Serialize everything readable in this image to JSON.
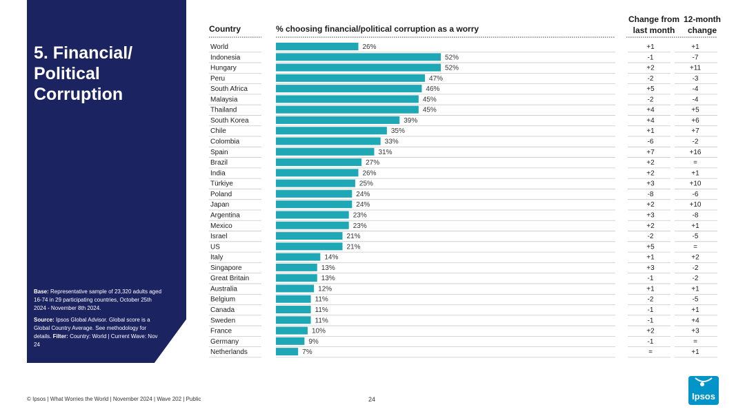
{
  "slide": {
    "title": "5. Financial/ Political Corruption",
    "base_label": "Base:",
    "base_text": "Representative sample of 23,320 adults aged 16-74 in 29 participating countries, October 25th 2024 - November 8th 2024.",
    "source_label": "Source:",
    "source_text": "Ipsos Global Advisor. Global score is a Global Country Average. See methodology for details.",
    "filter_label": "Filter:",
    "filter_text": "Country: World | Current Wave: Nov 24",
    "footer": "© Ipsos | What Worries the World | November 2024 | Wave 202 | Public",
    "page_number": "24",
    "logo_text": "Ipsos"
  },
  "colors": {
    "panel": "#1b2361",
    "bar": "#1ea7b4",
    "logo": "#0094c9"
  },
  "chart_data": {
    "type": "bar",
    "orientation": "horizontal",
    "headers": {
      "country": "Country",
      "measure": "% choosing financial/political corruption as a worry",
      "change_month_line1": "Change from",
      "change_month_line2": "last month",
      "change_year_line1": "12-month",
      "change_year_line2": "change"
    },
    "xlim": [
      0,
      100
    ],
    "value_suffix": "%",
    "rows": [
      {
        "country": "World",
        "value": 26,
        "change_month": "+1",
        "change_year": "+1"
      },
      {
        "country": "Indonesia",
        "value": 52,
        "change_month": "-1",
        "change_year": "-7"
      },
      {
        "country": "Hungary",
        "value": 52,
        "change_month": "+2",
        "change_year": "+11"
      },
      {
        "country": "Peru",
        "value": 47,
        "change_month": "-2",
        "change_year": "-3"
      },
      {
        "country": "South Africa",
        "value": 46,
        "change_month": "+5",
        "change_year": "-4"
      },
      {
        "country": "Malaysia",
        "value": 45,
        "change_month": "-2",
        "change_year": "-4"
      },
      {
        "country": "Thailand",
        "value": 45,
        "change_month": "+4",
        "change_year": "+5"
      },
      {
        "country": "South Korea",
        "value": 39,
        "change_month": "+4",
        "change_year": "+6"
      },
      {
        "country": "Chile",
        "value": 35,
        "change_month": "+1",
        "change_year": "+7"
      },
      {
        "country": "Colombia",
        "value": 33,
        "change_month": "-6",
        "change_year": "-2"
      },
      {
        "country": "Spain",
        "value": 31,
        "change_month": "+7",
        "change_year": "+16"
      },
      {
        "country": "Brazil",
        "value": 27,
        "change_month": "+2",
        "change_year": "="
      },
      {
        "country": "India",
        "value": 26,
        "change_month": "+2",
        "change_year": "+1"
      },
      {
        "country": "Türkiye",
        "value": 25,
        "change_month": "+3",
        "change_year": "+10"
      },
      {
        "country": "Poland",
        "value": 24,
        "change_month": "-8",
        "change_year": "-6"
      },
      {
        "country": "Japan",
        "value": 24,
        "change_month": "+2",
        "change_year": "+10"
      },
      {
        "country": "Argentina",
        "value": 23,
        "change_month": "+3",
        "change_year": "-8"
      },
      {
        "country": "Mexico",
        "value": 23,
        "change_month": "+2",
        "change_year": "+1"
      },
      {
        "country": "Israel",
        "value": 21,
        "change_month": "-2",
        "change_year": "-5"
      },
      {
        "country": "US",
        "value": 21,
        "change_month": "+5",
        "change_year": "="
      },
      {
        "country": "Italy",
        "value": 14,
        "change_month": "+1",
        "change_year": "+2"
      },
      {
        "country": "Singapore",
        "value": 13,
        "change_month": "+3",
        "change_year": "-2"
      },
      {
        "country": "Great Britain",
        "value": 13,
        "change_month": "-1",
        "change_year": "-2"
      },
      {
        "country": "Australia",
        "value": 12,
        "change_month": "+1",
        "change_year": "+1"
      },
      {
        "country": "Belgium",
        "value": 11,
        "change_month": "-2",
        "change_year": "-5"
      },
      {
        "country": "Canada",
        "value": 11,
        "change_month": "-1",
        "change_year": "+1"
      },
      {
        "country": "Sweden",
        "value": 11,
        "change_month": "-1",
        "change_year": "+4"
      },
      {
        "country": "France",
        "value": 10,
        "change_month": "+2",
        "change_year": "+3"
      },
      {
        "country": "Germany",
        "value": 9,
        "change_month": "-1",
        "change_year": "="
      },
      {
        "country": "Netherlands",
        "value": 7,
        "change_month": "=",
        "change_year": "+1"
      }
    ]
  }
}
